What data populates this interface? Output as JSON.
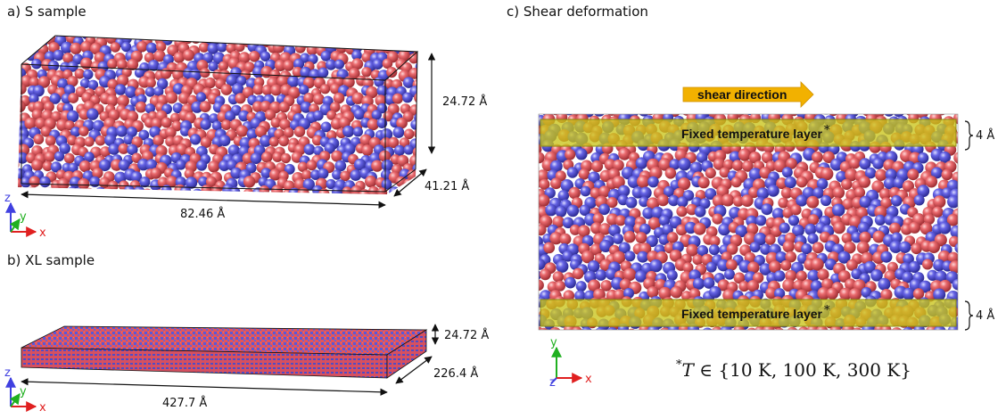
{
  "panels": {
    "a": {
      "title": "a) S sample",
      "dims": {
        "length": "82.46 Å",
        "depth": "41.21 Å",
        "height": "24.72 Å"
      },
      "axes": {
        "z": "z",
        "y": "y",
        "x": "x"
      }
    },
    "b": {
      "title": "b) XL sample",
      "dims": {
        "length": "427.7 Å",
        "depth": "226.4 Å",
        "height": "24.72 Å"
      },
      "axes": {
        "z": "z",
        "y": "y",
        "x": "x"
      }
    },
    "c": {
      "title": "c) Shear deformation",
      "shear_label": "shear direction",
      "layer_top": "Fixed temperature layer",
      "layer_bottom": "Fixed temperature layer",
      "layer_mark": "*",
      "thickness_top": "4 Å",
      "thickness_bottom": "4 Å",
      "axes": {
        "y": "y",
        "z": "z",
        "x": "x"
      },
      "temperature_note": {
        "star": "*",
        "var": "T",
        "rel": " ∈ {10 K, 100 K, 300 K}"
      }
    }
  },
  "colors": {
    "atom_red": "#e2565c",
    "atom_blue": "#5a58d8",
    "layer_yellow": "#c9c41a",
    "arrow_orange": "#f2b100",
    "axis_x": "#e02020",
    "axis_y": "#20b020",
    "axis_z": "#4040e0"
  }
}
